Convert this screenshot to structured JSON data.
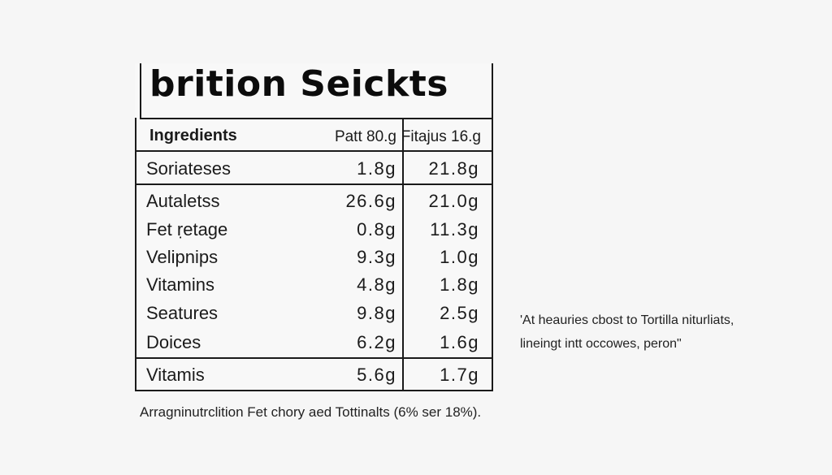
{
  "label": {
    "title": "brition Seickts",
    "headers": {
      "ingredient": "Ingredients",
      "col1": "Patt 80.g",
      "col2": "Fitajus 16.g"
    },
    "rows": [
      {
        "name": "Soriateses",
        "col1": "1.8g",
        "col2": "21.8g"
      },
      {
        "name": "Autaletss",
        "col1": "26.6g",
        "col2": "21.0g"
      },
      {
        "name": "Fet ṛetage",
        "col1": "0.8g",
        "col2": "11.3g"
      },
      {
        "name": "Velipnips",
        "col1": "9.3g",
        "col2": "1.0g"
      },
      {
        "name": "Vitamins",
        "col1": "4.8g",
        "col2": "1.8g"
      },
      {
        "name": "Seatures",
        "col1": "9.8g",
        "col2": "2.5g"
      },
      {
        "name": "Doices",
        "col1": "6.2g",
        "col2": "1.6g"
      },
      {
        "name": "Vitamis",
        "col1": "5.6g",
        "col2": "1.7g"
      }
    ]
  },
  "footnote": "Arragninutrclition Fet chory aed Tottinalts (6% ser 18%).",
  "sidenote": {
    "line1": "'At heauries cbost to Tortilla niturliats,",
    "line2": "lineingt intt occowes, peron\""
  }
}
